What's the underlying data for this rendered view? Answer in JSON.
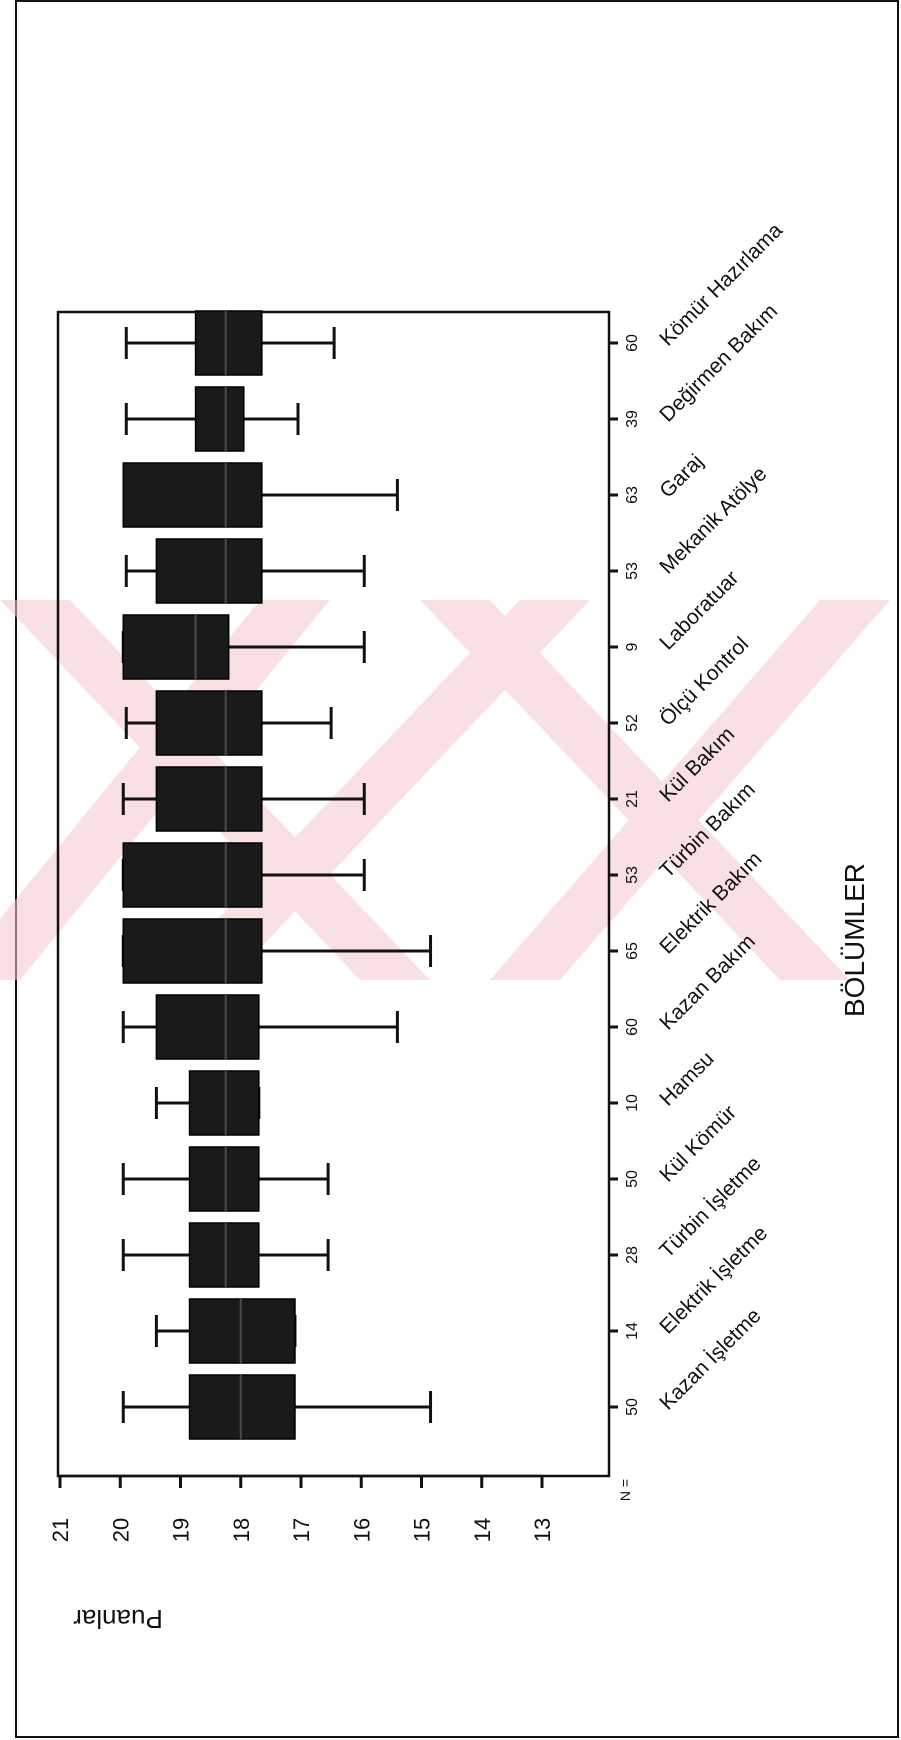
{
  "chart_data": {
    "type": "boxplot",
    "orientation": "rotated-90",
    "xlabel": "BÖLÜMLER",
    "ylabel": "Puanlar",
    "n_label": "N =",
    "ylim": [
      13,
      21
    ],
    "yticks": [
      "21",
      "20",
      "19",
      "18",
      "17",
      "16",
      "15",
      "14",
      "13"
    ],
    "box_color": "#1a1a1a",
    "categories": [
      "Kazan İşletme",
      "Elektrik İşletme",
      "Türbin İşletme",
      "Kül Kömür",
      "Hamsu",
      "Kazan Bakım",
      "Elektrik Bakım",
      "Türbin Bakım",
      "Kül Bakım",
      "Ölçü Kontrol",
      "Laboratuar",
      "Mekanik Atölye",
      "Garaj",
      "Değirmen Bakım",
      "Kömür Hazırlama"
    ],
    "n": [
      "50",
      "14",
      "28",
      "50",
      "10",
      "60",
      "65",
      "53",
      "21",
      "52",
      "9",
      "53",
      "63",
      "39",
      "60"
    ],
    "whisker_low": [
      14.85,
      17.1,
      16.55,
      16.55,
      17.7,
      15.4,
      14.85,
      15.95,
      15.95,
      16.5,
      15.95,
      15.95,
      15.4,
      17.05,
      16.45
    ],
    "q1": [
      17.1,
      17.1,
      17.7,
      17.7,
      17.7,
      17.7,
      17.65,
      17.65,
      17.65,
      17.65,
      18.2,
      17.65,
      17.65,
      17.95,
      17.65
    ],
    "median": [
      18.0,
      18.0,
      18.25,
      18.25,
      18.25,
      18.25,
      18.25,
      18.25,
      18.25,
      18.25,
      18.75,
      18.25,
      18.25,
      18.25,
      18.25
    ],
    "q3": [
      18.85,
      18.85,
      18.85,
      18.85,
      18.85,
      19.4,
      19.95,
      19.95,
      19.4,
      19.4,
      19.95,
      19.4,
      19.95,
      18.75,
      18.75
    ],
    "whisker_high": [
      19.95,
      19.4,
      19.95,
      19.95,
      19.4,
      19.95,
      19.95,
      19.95,
      19.95,
      19.9,
      19.95,
      19.9,
      19.9,
      19.9,
      19.9
    ]
  }
}
